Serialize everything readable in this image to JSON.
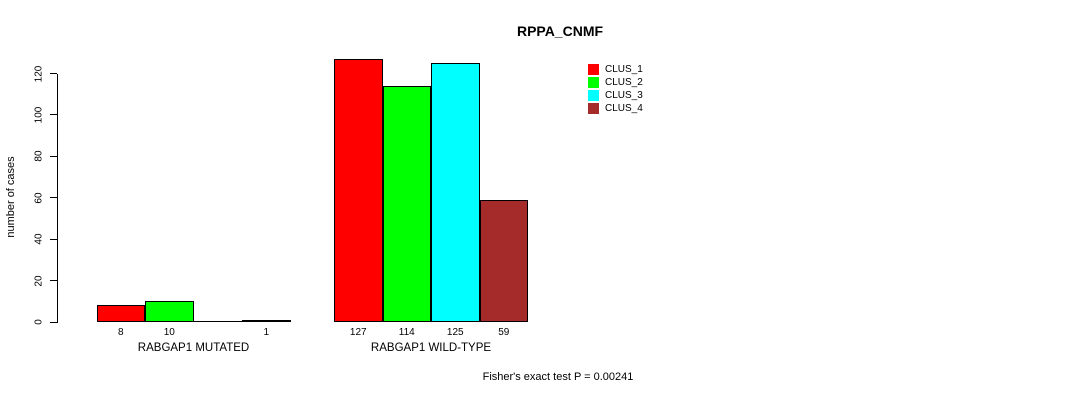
{
  "title": "RPPA_CNMF",
  "footer": {
    "stat_text": "Fisher's exact test P = 0.00241"
  },
  "chart_data": {
    "type": "bar",
    "title": "RPPA_CNMF",
    "xlabel": "",
    "ylabel": "number of cases",
    "ylim": [
      0,
      120
    ],
    "yticks": [
      0,
      20,
      40,
      60,
      80,
      100,
      120
    ],
    "grid": false,
    "legend_position": "top-right",
    "categories": [
      "RABGAP1 MUTATED",
      "RABGAP1 WILD-TYPE"
    ],
    "series": [
      {
        "name": "CLUS_1",
        "color": "#FF0000",
        "values": [
          8,
          127
        ]
      },
      {
        "name": "CLUS_2",
        "color": "#00FF00",
        "values": [
          10,
          114
        ]
      },
      {
        "name": "CLUS_3",
        "color": "#00FFFF",
        "values": [
          0,
          125
        ]
      },
      {
        "name": "CLUS_4",
        "color": "#A52A2A",
        "values": [
          1,
          59
        ]
      }
    ],
    "groups": [
      {
        "label": "RABGAP1 MUTATED",
        "values": [
          8,
          10,
          0,
          1
        ],
        "bar_labels": [
          "8",
          "10",
          "",
          "1"
        ]
      },
      {
        "label": "RABGAP1 WILD-TYPE",
        "values": [
          127,
          114,
          125,
          59
        ],
        "bar_labels": [
          "127",
          "114",
          "125",
          "59"
        ]
      }
    ],
    "bar_border_color": "#000000",
    "annotation": "Fisher's exact test P = 0.00241"
  }
}
